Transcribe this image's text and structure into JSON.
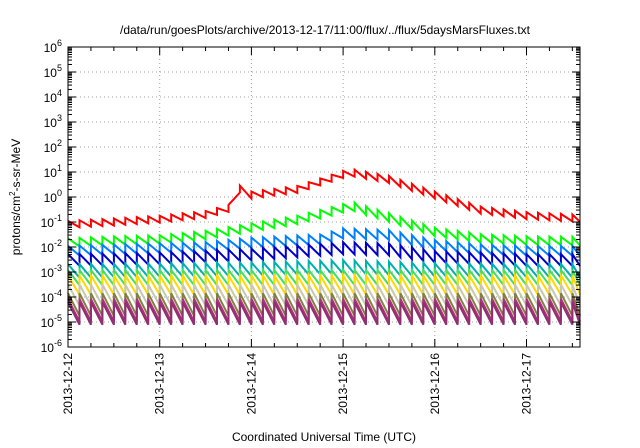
{
  "chart_data": {
    "type": "line",
    "title": "/data/run/goesPlots/archive/2013-12-17/11:00/flux/../flux/5daysMarsFluxes.txt",
    "xlabel": "Coordinated Universal Time (UTC)",
    "ylabel": {
      "base": "protons/cm",
      "sup": "2",
      "rest": "-s-sr-MeV"
    },
    "x_scale": "time",
    "xlim": [
      "2013-12-12T00:00",
      "2013-12-17T14:00"
    ],
    "x_ticks": [
      "2013-12-12",
      "2013-12-13",
      "2013-12-14",
      "2013-12-15",
      "2013-12-16",
      "2013-12-17"
    ],
    "y_scale": "log",
    "ylim": [
      1e-06,
      1000000.0
    ],
    "y_ticks": [
      {
        "base": "10",
        "exp": "-6",
        "value": 1e-06
      },
      {
        "base": "10",
        "exp": "-5",
        "value": 1e-05
      },
      {
        "base": "10",
        "exp": "-4",
        "value": 0.0001
      },
      {
        "base": "10",
        "exp": "-3",
        "value": 0.001
      },
      {
        "base": "10",
        "exp": "-2",
        "value": 0.01
      },
      {
        "base": "10",
        "exp": "-1",
        "value": 0.1
      },
      {
        "base": "10",
        "exp": "0",
        "value": 1
      },
      {
        "base": "10",
        "exp": "1",
        "value": 10.0
      },
      {
        "base": "10",
        "exp": "2",
        "value": 100.0
      },
      {
        "base": "10",
        "exp": "3",
        "value": 1000.0
      },
      {
        "base": "10",
        "exp": "4",
        "value": 10000.0
      },
      {
        "base": "10",
        "exp": "5",
        "value": 100000.0
      },
      {
        "base": "10",
        "exp": "6",
        "value": 1000000.0
      }
    ],
    "grid": true,
    "legend": "none",
    "sawtooth_period_hours": 3,
    "series": [
      {
        "color": "#ff0000",
        "sawtooth_ratio": 1.9,
        "x": [
          "2013-12-12T00:00",
          "2013-12-12T12:00",
          "2013-12-13T00:00",
          "2013-12-13T12:00",
          "2013-12-13T18:00",
          "2013-12-13T20:00",
          "2013-12-14T00:00",
          "2013-12-14T12:00",
          "2013-12-15T00:00",
          "2013-12-15T03:00",
          "2013-12-15T12:00",
          "2013-12-16T00:00",
          "2013-12-16T12:00",
          "2013-12-17T00:00",
          "2013-12-17T14:00"
        ],
        "y": [
          0.08,
          0.1,
          0.13,
          0.2,
          0.35,
          2.5,
          1.2,
          2,
          8,
          9,
          5,
          1.2,
          0.3,
          0.18,
          0.14
        ]
      },
      {
        "color": "#00ff00",
        "sawtooth_ratio": 2.2,
        "x": [
          "2013-12-12T00:00",
          "2013-12-12T12:00",
          "2013-12-13T00:00",
          "2013-12-13T12:00",
          "2013-12-14T00:00",
          "2013-12-14T12:00",
          "2013-12-15T00:00",
          "2013-12-15T03:00",
          "2013-12-15T12:00",
          "2013-12-16T00:00",
          "2013-12-16T12:00",
          "2013-12-17T00:00",
          "2013-12-17T14:00"
        ],
        "y": [
          0.015,
          0.018,
          0.02,
          0.03,
          0.06,
          0.12,
          0.35,
          0.4,
          0.15,
          0.04,
          0.022,
          0.018,
          0.017
        ]
      },
      {
        "color": "#0080ff",
        "sawtooth_ratio": 2.5,
        "x": [
          "2013-12-12T00:00",
          "2013-12-12T12:00",
          "2013-12-13T00:00",
          "2013-12-13T12:00",
          "2013-12-14T00:00",
          "2013-12-14T18:00",
          "2013-12-15T00:00",
          "2013-12-15T12:00",
          "2013-12-16T00:00",
          "2013-12-16T12:00",
          "2013-12-17T00:00",
          "2013-12-17T14:00"
        ],
        "y": [
          0.007,
          0.008,
          0.009,
          0.01,
          0.015,
          0.02,
          0.035,
          0.03,
          0.012,
          0.008,
          0.007,
          0.007
        ]
      },
      {
        "color": "#0000c8",
        "sawtooth_ratio": 3,
        "x": [
          "2013-12-12T00:00",
          "2013-12-13T00:00",
          "2013-12-14T00:00",
          "2013-12-15T00:00",
          "2013-12-15T12:00",
          "2013-12-16T00:00",
          "2013-12-17T00:00",
          "2013-12-17T14:00"
        ],
        "y": [
          0.003,
          0.0035,
          0.005,
          0.009,
          0.008,
          0.004,
          0.003,
          0.003
        ]
      },
      {
        "color": "#00b0b0",
        "sawtooth_ratio": 3.5,
        "x": [
          "2013-12-12T00:00",
          "2013-12-14T00:00",
          "2013-12-15T00:00",
          "2013-12-16T00:00",
          "2013-12-17T14:00"
        ],
        "y": [
          0.0011,
          0.0013,
          0.0016,
          0.0012,
          0.0011
        ]
      },
      {
        "color": "#40e060",
        "sawtooth_ratio": 4,
        "x": [
          "2013-12-12T00:00",
          "2013-12-17T14:00"
        ],
        "y": [
          0.0006,
          0.0006
        ]
      },
      {
        "color": "#ffd800",
        "sawtooth_ratio": 6,
        "x": [
          "2013-12-12T00:00",
          "2013-12-17T14:00"
        ],
        "y": [
          0.0003,
          0.0003
        ]
      },
      {
        "color": "#c8c8b0",
        "sawtooth_ratio": 7,
        "x": [
          "2013-12-12T00:00",
          "2013-12-17T14:00"
        ],
        "y": [
          0.00012,
          0.00012
        ]
      },
      {
        "color": "#808040",
        "sawtooth_ratio": 8,
        "x": [
          "2013-12-12T00:00",
          "2013-12-17T14:00"
        ],
        "y": [
          5e-05,
          5e-05
        ]
      },
      {
        "color": "#b03080",
        "sawtooth_ratio": 8,
        "x": [
          "2013-12-12T00:00",
          "2013-12-17T14:00"
        ],
        "y": [
          3e-05,
          3e-05
        ]
      },
      {
        "color": "#903070",
        "sawtooth_ratio": 8,
        "x": [
          "2013-12-12T00:00",
          "2013-12-17T14:00"
        ],
        "y": [
          2.2e-05,
          2.2e-05
        ]
      }
    ]
  }
}
